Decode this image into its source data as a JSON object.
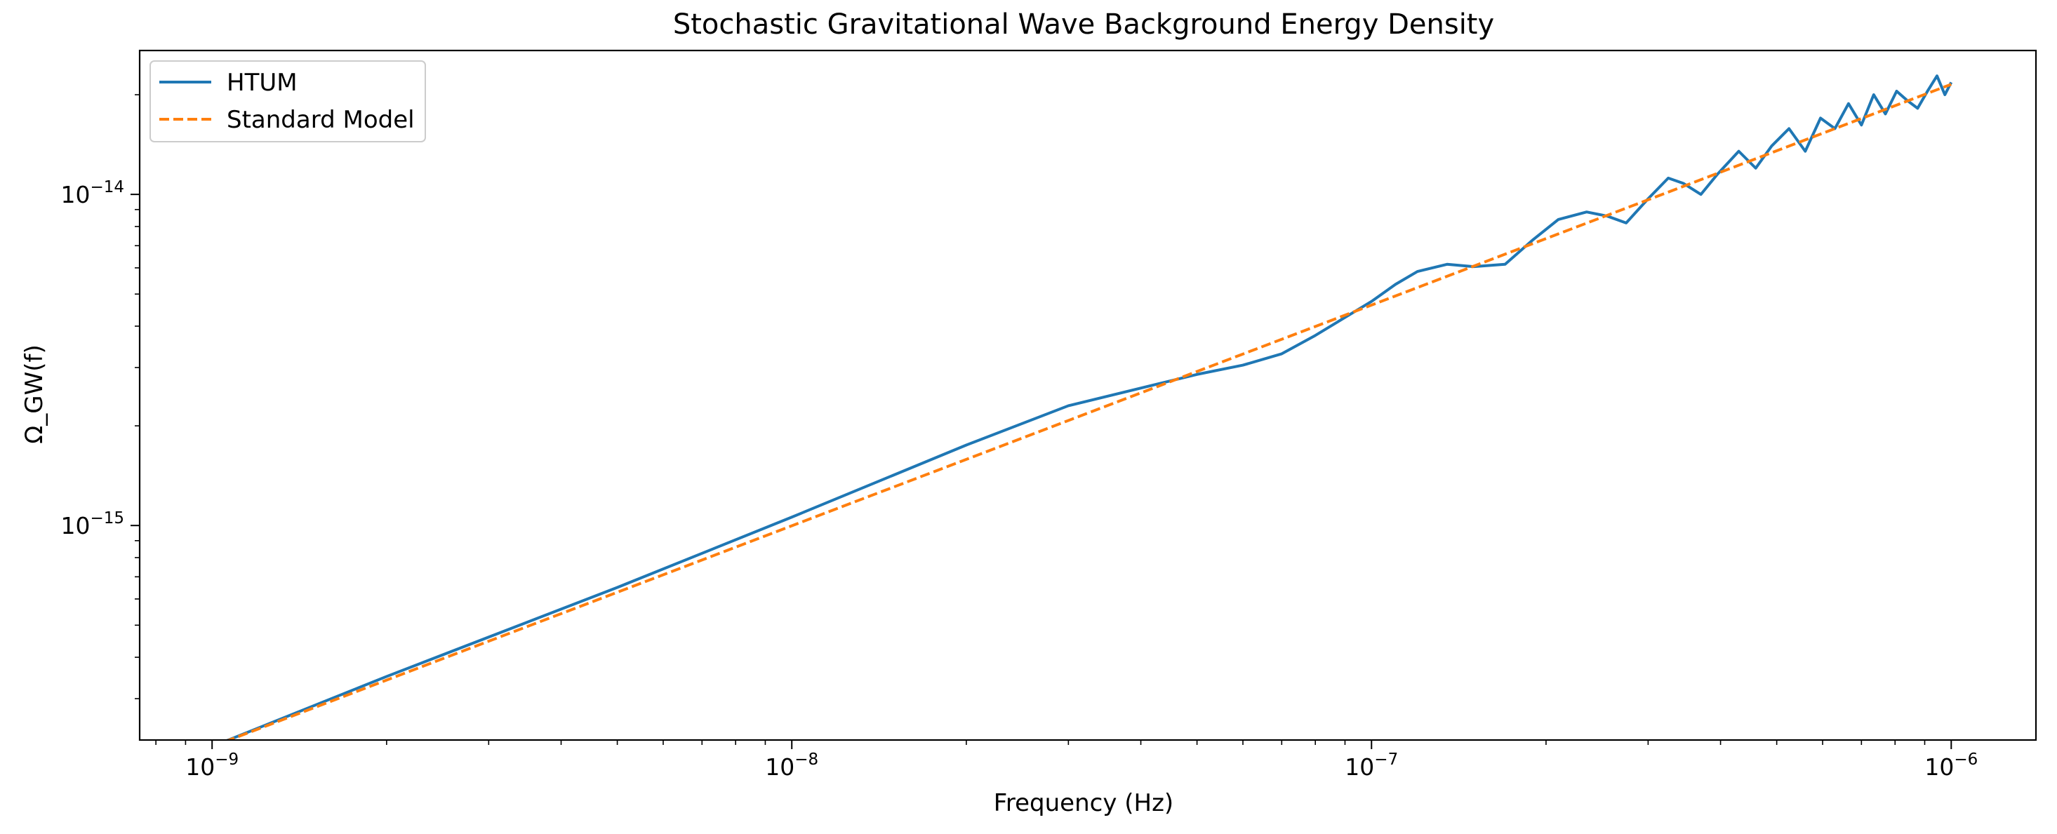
{
  "chart_data": {
    "type": "line",
    "title": "Stochastic Gravitational Wave Background Energy Density",
    "xlabel": "Frequency (Hz)",
    "ylabel": "Ω_GW(f)",
    "xscale": "log",
    "yscale": "log",
    "xlim": [
      7.5e-10,
      1.4e-06
    ],
    "ylim": [
      2.25e-16,
      2.72e-14
    ],
    "legend_position": "top-left",
    "grid": false,
    "x_ticks": [
      {
        "value": 1e-09,
        "base": "10",
        "exp": "−9"
      },
      {
        "value": 1e-08,
        "base": "10",
        "exp": "−8"
      },
      {
        "value": 1e-07,
        "base": "10",
        "exp": "−7"
      },
      {
        "value": 1e-06,
        "base": "10",
        "exp": "−6"
      }
    ],
    "y_ticks": [
      {
        "value": 1e-15,
        "base": "10",
        "exp": "−15"
      },
      {
        "value": 1e-14,
        "base": "10",
        "exp": "−14"
      }
    ],
    "series": [
      {
        "name": "HTUM",
        "color": "#1f77b4",
        "style": "solid",
        "x": [
          1e-09,
          2e-09,
          5e-09,
          1e-08,
          2e-08,
          3e-08,
          5e-08,
          6e-08,
          7e-08,
          8e-08,
          9e-08,
          1e-07,
          1.1e-07,
          1.2e-07,
          1.35e-07,
          1.5e-07,
          1.7e-07,
          1.9e-07,
          2.1e-07,
          2.35e-07,
          2.55e-07,
          2.75e-07,
          3e-07,
          3.25e-07,
          3.45e-07,
          3.7e-07,
          3.95e-07,
          4.3e-07,
          4.6e-07,
          4.9e-07,
          5.25e-07,
          5.6e-07,
          5.95e-07,
          6.3e-07,
          6.65e-07,
          7e-07,
          7.35e-07,
          7.7e-07,
          8.05e-07,
          8.4e-07,
          8.75e-07,
          9.1e-07,
          9.45e-07,
          9.75e-07,
          1e-06
        ],
        "y": [
          2.15e-16,
          3.5e-16,
          6.5e-16,
          1.06e-15,
          1.75e-15,
          2.3e-15,
          2.86e-15,
          3.05e-15,
          3.3e-15,
          3.75e-15,
          4.25e-15,
          4.75e-15,
          5.35e-15,
          5.85e-15,
          6.15e-15,
          6.05e-15,
          6.15e-15,
          7.3e-15,
          8.4e-15,
          8.85e-15,
          8.6e-15,
          8.2e-15,
          9.7e-15,
          1.12e-14,
          1.08e-14,
          1e-14,
          1.15e-14,
          1.35e-14,
          1.2e-14,
          1.4e-14,
          1.58e-14,
          1.35e-14,
          1.7e-14,
          1.58e-14,
          1.88e-14,
          1.62e-14,
          2e-14,
          1.75e-14,
          2.05e-14,
          1.92e-14,
          1.82e-14,
          2.05e-14,
          2.28e-14,
          2e-14,
          2.18e-14
        ]
      },
      {
        "name": "Standard Model",
        "color": "#ff7f0e",
        "style": "dashed",
        "x": [
          1e-09,
          1e-06
        ],
        "y": [
          2.15e-16,
          2.15e-14
        ]
      }
    ]
  }
}
